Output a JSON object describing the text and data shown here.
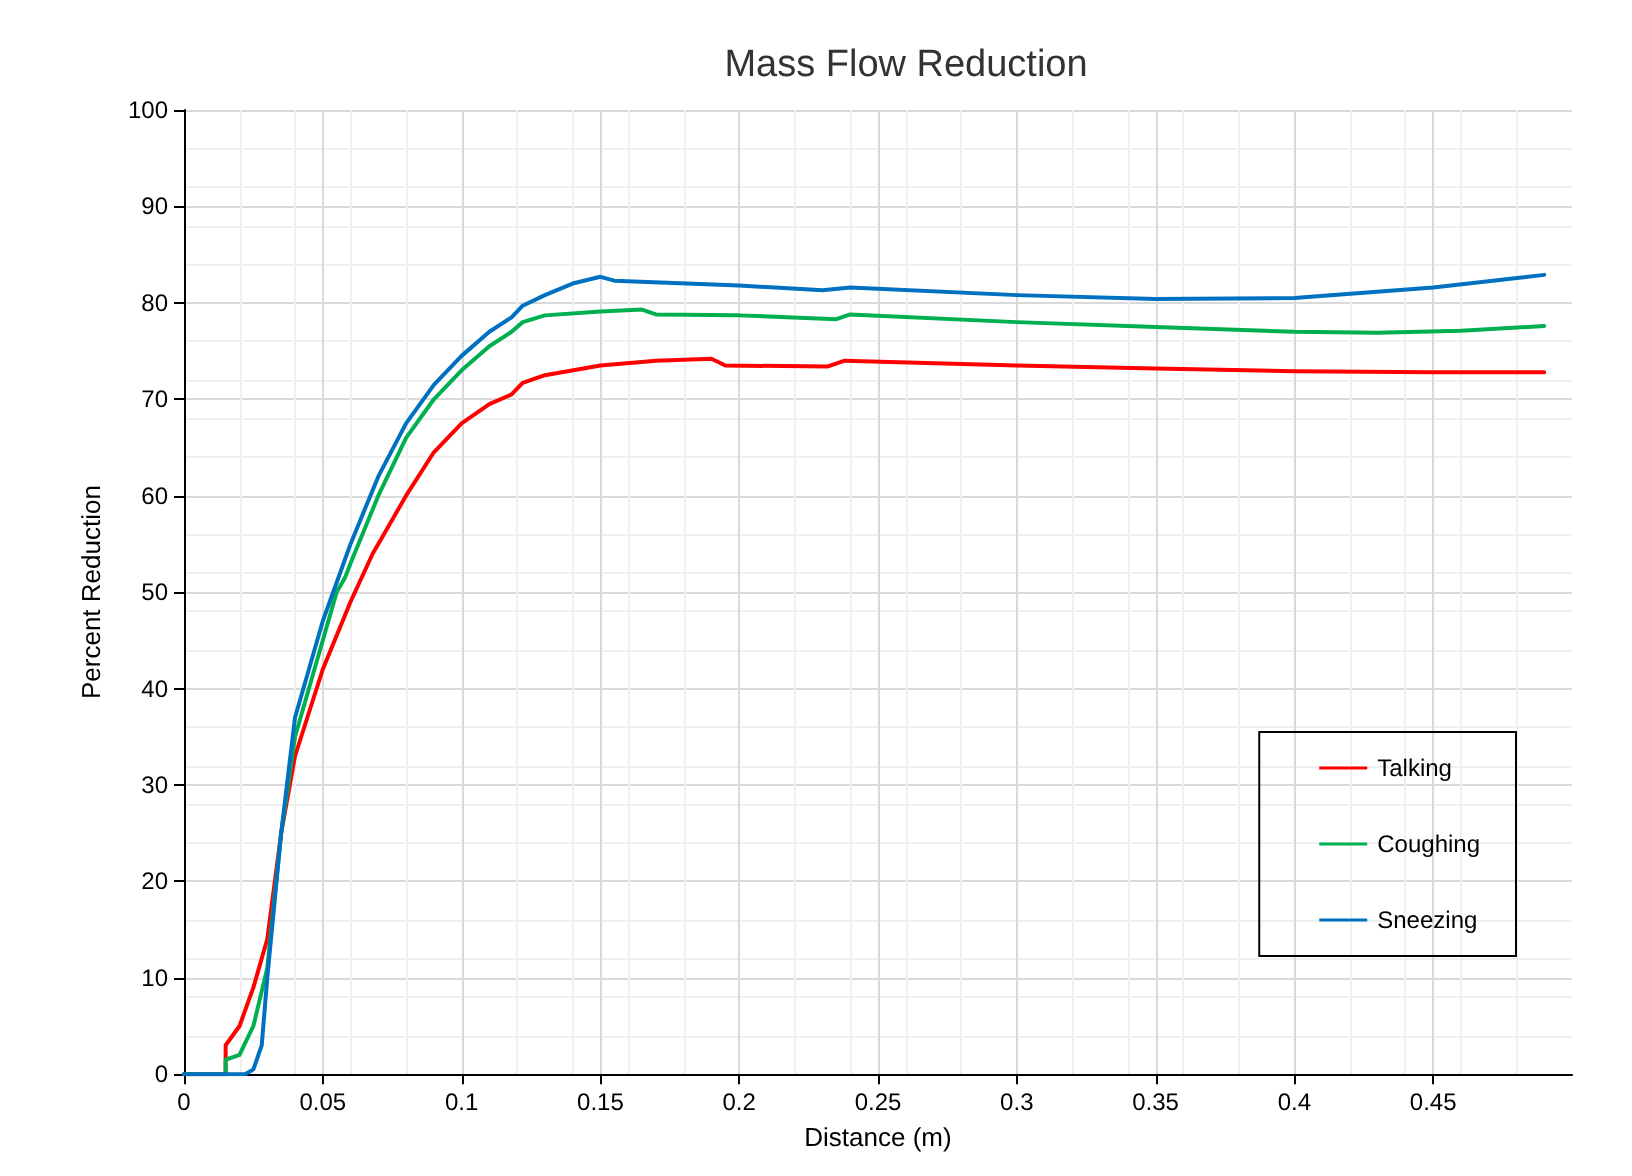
{
  "chart_data": {
    "type": "line",
    "title": "Mass Flow Reduction",
    "xlabel": "Distance (m)",
    "ylabel": "Percent Reduction",
    "xlim": [
      0,
      0.5
    ],
    "xticks": [
      0,
      0.05,
      0.1,
      0.15,
      0.2,
      0.25,
      0.3,
      0.35,
      0.4,
      0.45
    ],
    "ylim": [
      0,
      100
    ],
    "yticks": [
      0,
      10,
      20,
      30,
      40,
      50,
      60,
      70,
      80,
      90,
      100
    ],
    "grid": true,
    "legend": "bottom right",
    "marker": "none",
    "line_style": "solid",
    "series": [
      {
        "name": "Talking",
        "color": "#ff0000",
        "x": [
          0,
          0.015,
          0.015,
          0.02,
          0.025,
          0.028,
          0.03,
          0.035,
          0.04,
          0.05,
          0.06,
          0.068,
          0.07,
          0.08,
          0.09,
          0.1,
          0.11,
          0.118,
          0.122,
          0.13,
          0.15,
          0.17,
          0.19,
          0.195,
          0.232,
          0.238,
          0.3,
          0.35,
          0.4,
          0.45,
          0.49
        ],
        "values": [
          0,
          0,
          3,
          5,
          9,
          12,
          14,
          25,
          33,
          42,
          49,
          54,
          55,
          60,
          64.5,
          67.5,
          69.5,
          70.5,
          71.7,
          72.5,
          73.5,
          74,
          74.2,
          73.5,
          73.4,
          74,
          73.5,
          73.2,
          72.9,
          72.8,
          72.8
        ]
      },
      {
        "name": "Coughing",
        "color": "#00b050",
        "x": [
          0,
          0.015,
          0.015,
          0.02,
          0.025,
          0.03,
          0.035,
          0.04,
          0.05,
          0.055,
          0.058,
          0.06,
          0.07,
          0.08,
          0.09,
          0.1,
          0.11,
          0.118,
          0.122,
          0.13,
          0.15,
          0.165,
          0.17,
          0.2,
          0.235,
          0.24,
          0.3,
          0.35,
          0.4,
          0.43,
          0.46,
          0.49
        ],
        "values": [
          0,
          0,
          1.5,
          2,
          5,
          11,
          25,
          35,
          45,
          50,
          51.5,
          53,
          60,
          66,
          70,
          73,
          75.5,
          77,
          78,
          78.7,
          79.1,
          79.3,
          78.8,
          78.7,
          78.3,
          78.8,
          78,
          77.5,
          77,
          76.9,
          77.1,
          77.6
        ]
      },
      {
        "name": "Sneezing",
        "color": "#0070c0",
        "x": [
          0,
          0.022,
          0.025,
          0.028,
          0.03,
          0.035,
          0.04,
          0.05,
          0.055,
          0.06,
          0.07,
          0.08,
          0.09,
          0.1,
          0.11,
          0.118,
          0.122,
          0.13,
          0.14,
          0.15,
          0.155,
          0.2,
          0.23,
          0.24,
          0.3,
          0.35,
          0.4,
          0.45,
          0.49
        ],
        "values": [
          0,
          0,
          0.5,
          3,
          10,
          25,
          37,
          47,
          51,
          55,
          62,
          67.5,
          71.5,
          74.5,
          77,
          78.5,
          79.7,
          80.8,
          82,
          82.7,
          82.3,
          81.8,
          81.3,
          81.6,
          80.8,
          80.4,
          80.5,
          81.6,
          82.9
        ]
      }
    ]
  }
}
